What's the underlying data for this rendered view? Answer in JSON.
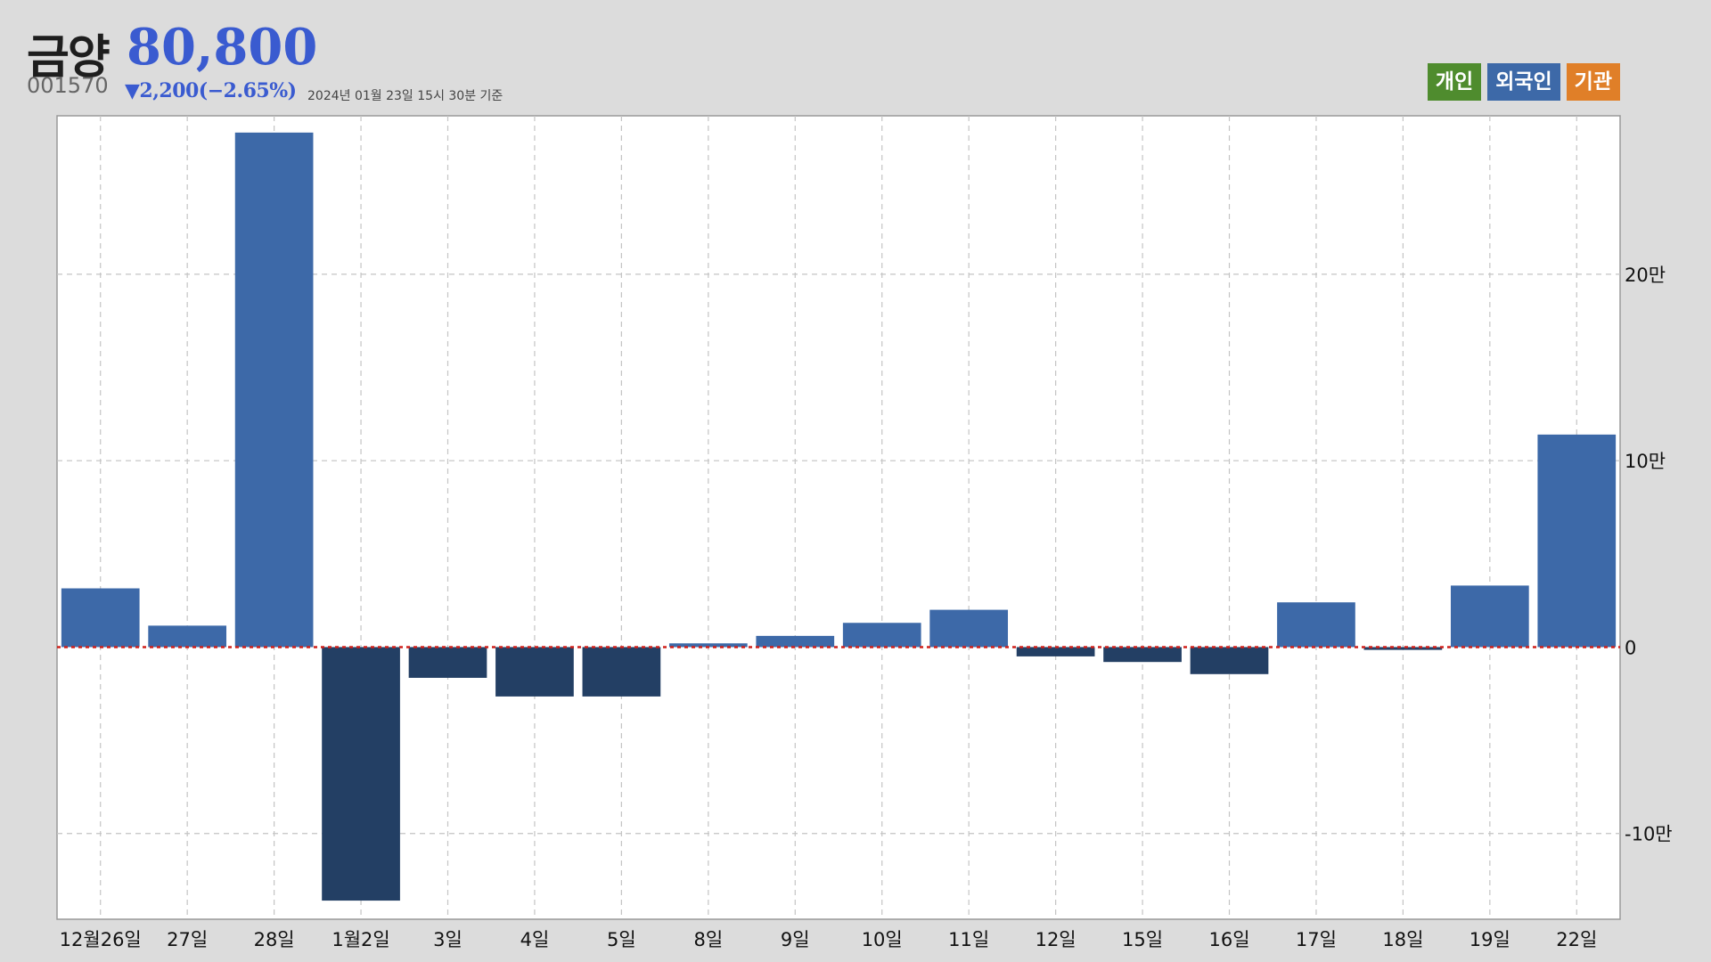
{
  "header": {
    "name": "금양",
    "price": "80,800",
    "code": "001570",
    "change": "▼2,200(−2.65%)",
    "date": "2024년 01월 23일 15시 30분 기준"
  },
  "legend": [
    {
      "label": "개인",
      "color": "#4f8c2e"
    },
    {
      "label": "외국인",
      "color": "#3d69a8"
    },
    {
      "label": "기관",
      "color": "#e07f28"
    }
  ],
  "chart_data": {
    "type": "bar",
    "title": "",
    "xlabel": "",
    "ylabel": "",
    "categories": [
      "12월26일",
      "27일",
      "28일",
      "1월2일",
      "3일",
      "4일",
      "5일",
      "8일",
      "9일",
      "10일",
      "11일",
      "12일",
      "15일",
      "16일",
      "17일",
      "18일",
      "19일",
      "22일"
    ],
    "series": [
      {
        "values": [
          31500,
          11500,
          276000,
          -136000,
          -16500,
          -26500,
          -26500,
          2000,
          6000,
          13000,
          20000,
          -5000,
          -8000,
          -14500,
          24000,
          -1500,
          33000,
          114000
        ]
      }
    ],
    "ylim": [
      -146000,
      285000
    ],
    "yticks": [
      -100000,
      0,
      100000,
      200000
    ],
    "ytick_labels": [
      "-10만",
      "0",
      "10만",
      "20만"
    ],
    "y_axis_position": "right",
    "zero_line": "red dotted",
    "grid": true,
    "positive_color": "#3d69a8",
    "negative_color": "#233f64"
  }
}
